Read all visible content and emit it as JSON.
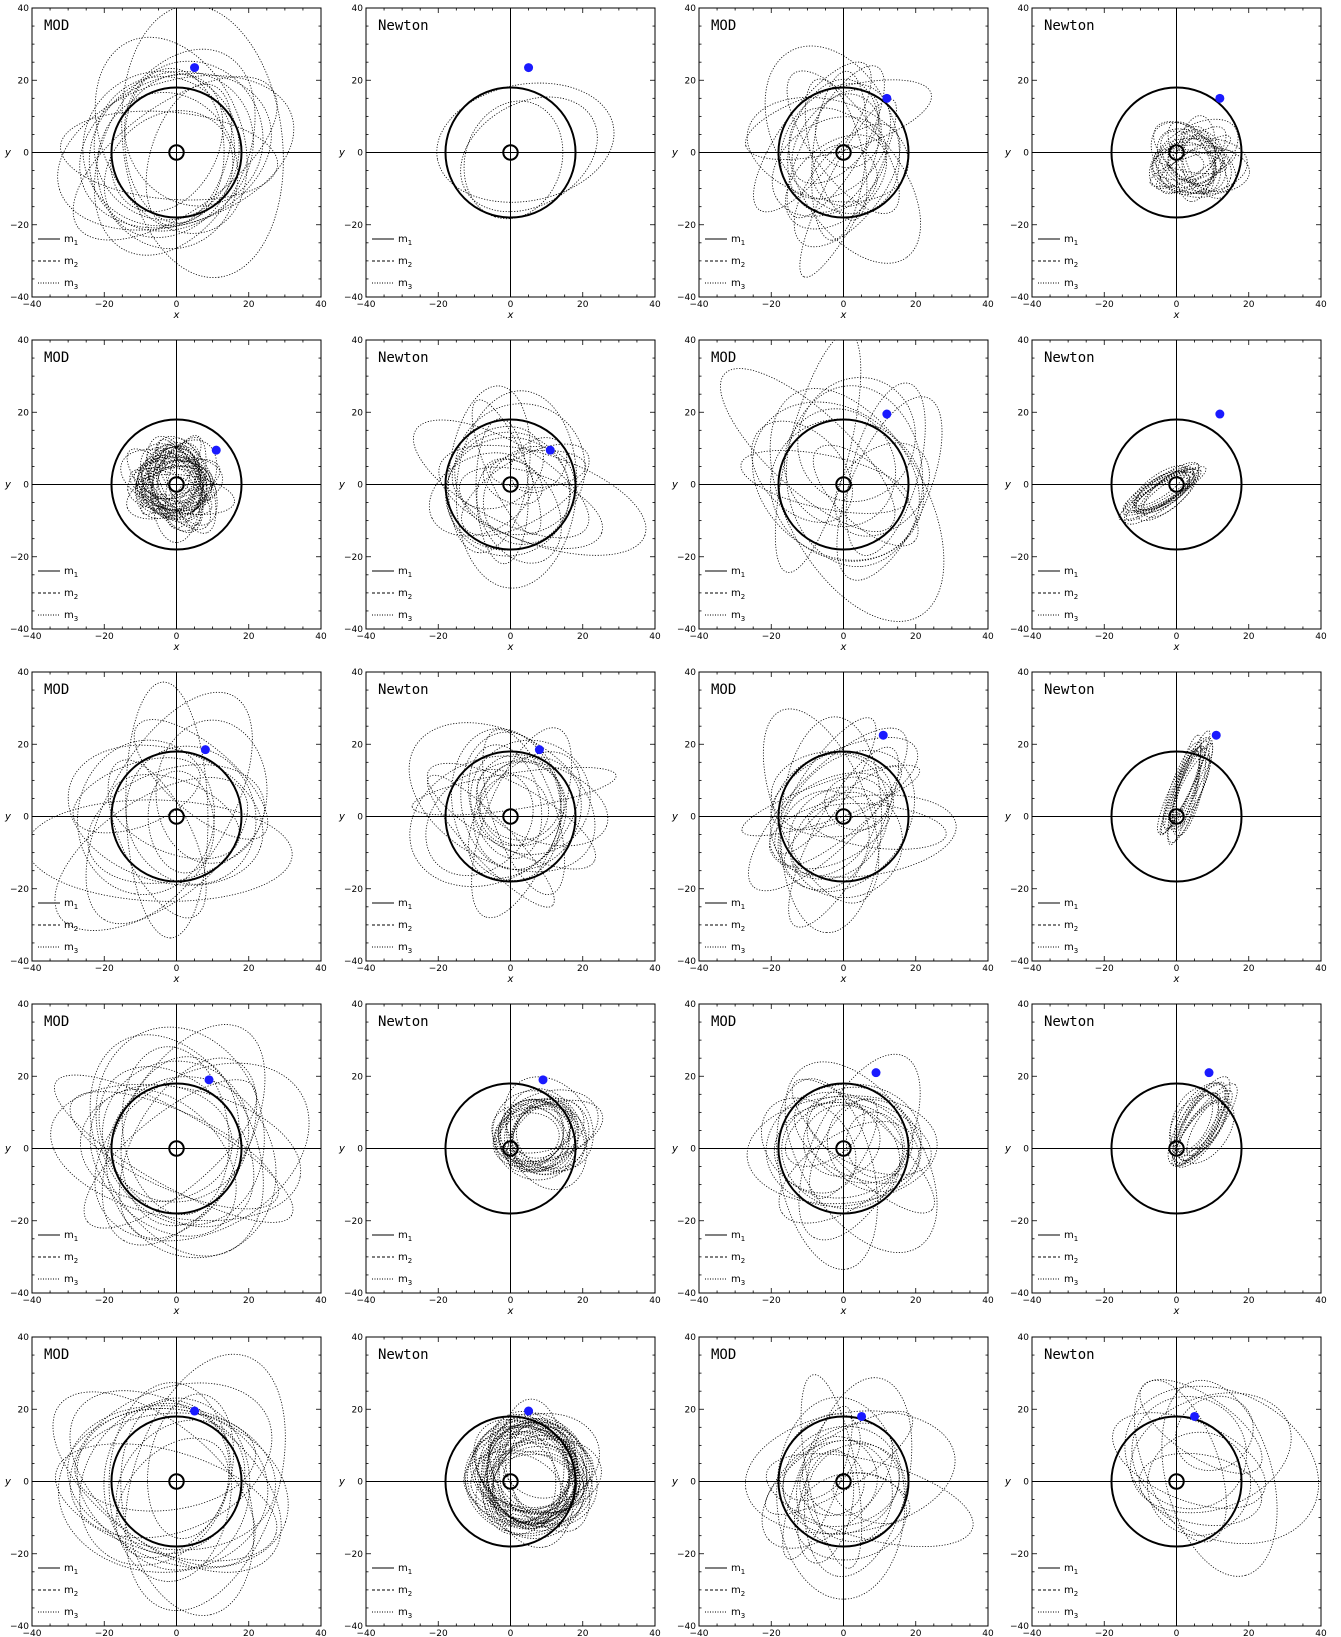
{
  "figure": {
    "ncols": 4,
    "nrows": 5
  },
  "legend_placement": "bottom-left",
  "legend": [
    {
      "label": "m",
      "sub": "1",
      "style": "solid"
    },
    {
      "label": "m",
      "sub": "2",
      "style": "dashed"
    },
    {
      "label": "m",
      "sub": "3",
      "style": "dotted"
    }
  ],
  "colors": {
    "body": "#1a1aff",
    "line": "#000000",
    "background": "#ffffff"
  },
  "chart_data": [
    {
      "type": "line",
      "title": "MOD",
      "xlabel": "x",
      "ylabel": "y",
      "xlim": [
        -40,
        40
      ],
      "ylim": [
        -40,
        40
      ],
      "xticks": [
        -40,
        -20,
        0,
        20,
        40
      ],
      "yticks": [
        -40,
        -20,
        0,
        20,
        40
      ],
      "outer_circle_radius": 18,
      "inner_circle_radius": 2,
      "body_point": {
        "x": 5,
        "y": 23.5
      },
      "pattern": "rosette-wide"
    },
    {
      "type": "line",
      "title": "Newton",
      "xlabel": "x",
      "ylabel": "y",
      "xlim": [
        -40,
        40
      ],
      "ylim": [
        -40,
        40
      ],
      "xticks": [
        -40,
        -20,
        0,
        20,
        40
      ],
      "yticks": [
        -40,
        -20,
        0,
        20,
        40
      ],
      "outer_circle_radius": 18,
      "inner_circle_radius": 2,
      "body_point": {
        "x": 5,
        "y": 23.5
      },
      "pattern": "escape"
    },
    {
      "type": "line",
      "title": "MOD",
      "xlabel": "x",
      "ylabel": "y",
      "xlim": [
        -40,
        40
      ],
      "ylim": [
        -40,
        40
      ],
      "xticks": [
        -40,
        -20,
        0,
        20,
        40
      ],
      "yticks": [
        -40,
        -20,
        0,
        20,
        40
      ],
      "outer_circle_radius": 18,
      "inner_circle_radius": 2,
      "body_point": {
        "x": 12,
        "y": 15
      },
      "pattern": "mixed"
    },
    {
      "type": "line",
      "title": "Newton",
      "xlabel": "x",
      "ylabel": "y",
      "xlim": [
        -40,
        40
      ],
      "ylim": [
        -40,
        40
      ],
      "xticks": [
        -40,
        -20,
        0,
        20,
        40
      ],
      "yticks": [
        -40,
        -20,
        0,
        20,
        40
      ],
      "outer_circle_radius": 18,
      "inner_circle_radius": 2,
      "body_point": {
        "x": 12,
        "y": 15
      },
      "pattern": "dense-small"
    },
    {
      "type": "line",
      "title": "MOD",
      "xlabel": "x",
      "ylabel": "y",
      "xlim": [
        -40,
        40
      ],
      "ylim": [
        -40,
        40
      ],
      "xticks": [
        -40,
        -20,
        0,
        20,
        40
      ],
      "yticks": [
        -40,
        -20,
        0,
        20,
        40
      ],
      "outer_circle_radius": 18,
      "inner_circle_radius": 2,
      "body_point": {
        "x": 11,
        "y": 9.5
      },
      "pattern": "rosette-tight"
    },
    {
      "type": "line",
      "title": "Newton",
      "xlabel": "x",
      "ylabel": "y",
      "xlim": [
        -40,
        40
      ],
      "ylim": [
        -40,
        40
      ],
      "xticks": [
        -40,
        -20,
        0,
        20,
        40
      ],
      "yticks": [
        -40,
        -20,
        0,
        20,
        40
      ],
      "outer_circle_radius": 18,
      "inner_circle_radius": 2,
      "body_point": {
        "x": 11,
        "y": 9.5
      },
      "pattern": "mixed"
    },
    {
      "type": "line",
      "title": "MOD",
      "xlabel": "x",
      "ylabel": "y",
      "xlim": [
        -40,
        40
      ],
      "ylim": [
        -40,
        40
      ],
      "xticks": [
        -40,
        -20,
        0,
        20,
        40
      ],
      "yticks": [
        -40,
        -20,
        0,
        20,
        40
      ],
      "outer_circle_radius": 18,
      "inner_circle_radius": 2,
      "body_point": {
        "x": 12,
        "y": 19.5
      },
      "pattern": "elongated-wide"
    },
    {
      "type": "line",
      "title": "Newton",
      "xlabel": "x",
      "ylabel": "y",
      "xlim": [
        -40,
        40
      ],
      "ylim": [
        -40,
        40
      ],
      "xticks": [
        -40,
        -20,
        0,
        20,
        40
      ],
      "yticks": [
        -40,
        -20,
        0,
        20,
        40
      ],
      "outer_circle_radius": 18,
      "inner_circle_radius": 2,
      "body_point": {
        "x": 12,
        "y": 19.5
      },
      "pattern": "elongated-diag"
    },
    {
      "type": "line",
      "title": "MOD",
      "xlabel": "x",
      "ylabel": "y",
      "xlim": [
        -40,
        40
      ],
      "ylim": [
        -40,
        40
      ],
      "xticks": [
        -40,
        -20,
        0,
        20,
        40
      ],
      "yticks": [
        -40,
        -20,
        0,
        20,
        40
      ],
      "outer_circle_radius": 18,
      "inner_circle_radius": 2,
      "body_point": {
        "x": 8,
        "y": 18.5
      },
      "pattern": "elongated-wide"
    },
    {
      "type": "line",
      "title": "Newton",
      "xlabel": "x",
      "ylabel": "y",
      "xlim": [
        -40,
        40
      ],
      "ylim": [
        -40,
        40
      ],
      "xticks": [
        -40,
        -20,
        0,
        20,
        40
      ],
      "yticks": [
        -40,
        -20,
        0,
        20,
        40
      ],
      "outer_circle_radius": 18,
      "inner_circle_radius": 2,
      "body_point": {
        "x": 8,
        "y": 18.5
      },
      "pattern": "mixed"
    },
    {
      "type": "line",
      "title": "MOD",
      "xlabel": "x",
      "ylabel": "y",
      "xlim": [
        -40,
        40
      ],
      "ylim": [
        -40,
        40
      ],
      "xticks": [
        -40,
        -20,
        0,
        20,
        40
      ],
      "yticks": [
        -40,
        -20,
        0,
        20,
        40
      ],
      "outer_circle_radius": 18,
      "inner_circle_radius": 2,
      "body_point": {
        "x": 11,
        "y": 22.5
      },
      "pattern": "mixed"
    },
    {
      "type": "line",
      "title": "Newton",
      "xlabel": "x",
      "ylabel": "y",
      "xlim": [
        -40,
        40
      ],
      "ylim": [
        -40,
        40
      ],
      "xticks": [
        -40,
        -20,
        0,
        20,
        40
      ],
      "yticks": [
        -40,
        -20,
        0,
        20,
        40
      ],
      "outer_circle_radius": 18,
      "inner_circle_radius": 2,
      "body_point": {
        "x": 11,
        "y": 22.5
      },
      "pattern": "elongated-vert"
    },
    {
      "type": "line",
      "title": "MOD",
      "xlabel": "x",
      "ylabel": "y",
      "xlim": [
        -40,
        40
      ],
      "ylim": [
        -40,
        40
      ],
      "xticks": [
        -40,
        -20,
        0,
        20,
        40
      ],
      "yticks": [
        -40,
        -20,
        0,
        20,
        40
      ],
      "outer_circle_radius": 18,
      "inner_circle_radius": 2,
      "body_point": {
        "x": 9,
        "y": 19
      },
      "pattern": "rosette-wide"
    },
    {
      "type": "line",
      "title": "Newton",
      "xlabel": "x",
      "ylabel": "y",
      "xlim": [
        -40,
        40
      ],
      "ylim": [
        -40,
        40
      ],
      "xticks": [
        -40,
        -20,
        0,
        20,
        40
      ],
      "yticks": [
        -40,
        -20,
        0,
        20,
        40
      ],
      "outer_circle_radius": 18,
      "inner_circle_radius": 2,
      "body_point": {
        "x": 9,
        "y": 19
      },
      "pattern": "dense-offset"
    },
    {
      "type": "line",
      "title": "MOD",
      "xlabel": "x",
      "ylabel": "y",
      "xlim": [
        -40,
        40
      ],
      "ylim": [
        -40,
        40
      ],
      "xticks": [
        -40,
        -20,
        0,
        20,
        40
      ],
      "yticks": [
        -40,
        -20,
        0,
        20,
        40
      ],
      "outer_circle_radius": 18,
      "inner_circle_radius": 2,
      "body_point": {
        "x": 9,
        "y": 21
      },
      "pattern": "mixed"
    },
    {
      "type": "line",
      "title": "Newton",
      "xlabel": "x",
      "ylabel": "y",
      "xlim": [
        -40,
        40
      ],
      "ylim": [
        -40,
        40
      ],
      "xticks": [
        -40,
        -20,
        0,
        20,
        40
      ],
      "yticks": [
        -40,
        -20,
        0,
        20,
        40
      ],
      "outer_circle_radius": 18,
      "inner_circle_radius": 2,
      "body_point": {
        "x": 9,
        "y": 21
      },
      "pattern": "elongated-diag2"
    },
    {
      "type": "line",
      "title": "MOD",
      "xlabel": "x",
      "ylabel": "y",
      "xlim": [
        -40,
        40
      ],
      "ylim": [
        -40,
        40
      ],
      "xticks": [
        -40,
        -20,
        0,
        20,
        40
      ],
      "yticks": [
        -40,
        -20,
        0,
        20,
        40
      ],
      "outer_circle_radius": 18,
      "inner_circle_radius": 2,
      "body_point": {
        "x": 5,
        "y": 19.5
      },
      "pattern": "rosette-wide"
    },
    {
      "type": "line",
      "title": "Newton",
      "xlabel": "x",
      "ylabel": "y",
      "xlim": [
        -40,
        40
      ],
      "ylim": [
        -40,
        40
      ],
      "xticks": [
        -40,
        -20,
        0,
        20,
        40
      ],
      "yticks": [
        -40,
        -20,
        0,
        20,
        40
      ],
      "outer_circle_radius": 18,
      "inner_circle_radius": 2,
      "body_point": {
        "x": 5,
        "y": 19.5
      },
      "pattern": "dense-full"
    },
    {
      "type": "line",
      "title": "MOD",
      "xlabel": "x",
      "ylabel": "y",
      "xlim": [
        -40,
        40
      ],
      "ylim": [
        -40,
        40
      ],
      "xticks": [
        -40,
        -20,
        0,
        20,
        40
      ],
      "yticks": [
        -40,
        -20,
        0,
        20,
        40
      ],
      "outer_circle_radius": 18,
      "inner_circle_radius": 2,
      "body_point": {
        "x": 5,
        "y": 18
      },
      "pattern": "mixed"
    },
    {
      "type": "line",
      "title": "Newton",
      "xlabel": "x",
      "ylabel": "y",
      "xlim": [
        -40,
        40
      ],
      "ylim": [
        -40,
        40
      ],
      "xticks": [
        -40,
        -20,
        0,
        20,
        40
      ],
      "yticks": [
        -40,
        -20,
        0,
        20,
        40
      ],
      "outer_circle_radius": 18,
      "inner_circle_radius": 2,
      "body_point": {
        "x": 5,
        "y": 18
      },
      "pattern": "loops-large"
    }
  ]
}
